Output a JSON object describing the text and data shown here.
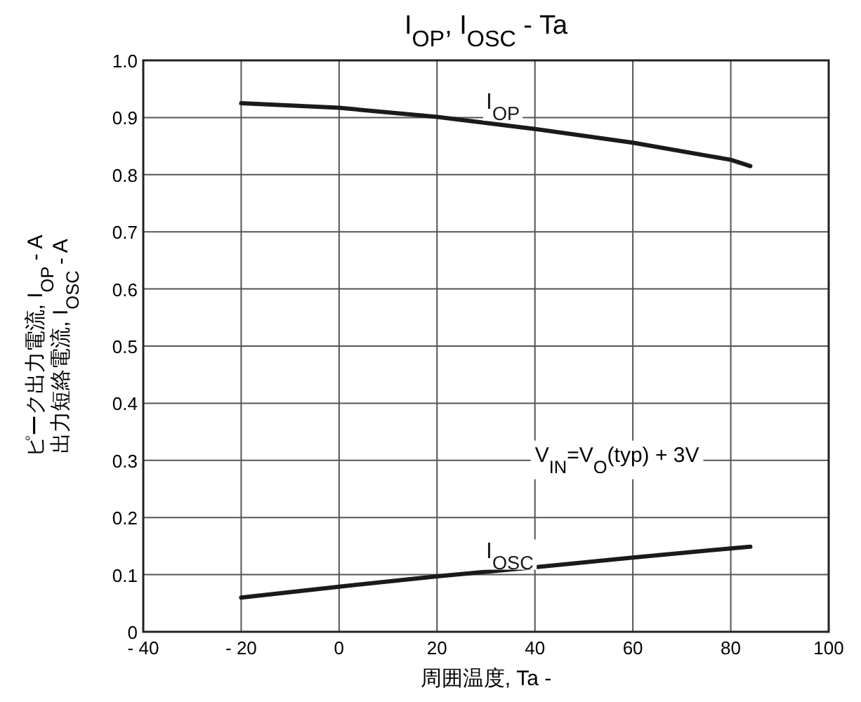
{
  "chart_data": {
    "type": "line",
    "title": "I$_{OP}$, I$_{OSC}$    -    Ta",
    "xlabel": "周囲温度, Ta    -",
    "ylabel": "ピーク出力電流, I$_{OP}$    -    A\n出力短絡電流, I$_{OSC}$    -    A",
    "xlim": [
      -40,
      100
    ],
    "xticks": [
      {
        "value": -40,
        "label": "- 40"
      },
      {
        "value": -20,
        "label": "- 20"
      },
      0,
      20,
      40,
      60,
      80,
      100
    ],
    "ylim": [
      0,
      1.0
    ],
    "yticks": [
      0,
      0.1,
      0.2,
      0.3,
      0.4,
      0.5,
      0.6,
      0.7,
      0.8,
      0.9,
      {
        "value": 1.0,
        "label": "1.0"
      }
    ],
    "grid": true,
    "marker": "none",
    "line_style": "solid",
    "series": [
      {
        "name": "I$_{OP}$",
        "color": "#1a1a1a",
        "x": [
          -20,
          0,
          20,
          40,
          60,
          80,
          84
        ],
        "values": [
          0.925,
          0.917,
          0.901,
          0.88,
          0.856,
          0.826,
          0.815
        ]
      },
      {
        "name": "I$_{OSC}$",
        "color": "#1a1a1a",
        "x": [
          -20,
          0,
          20,
          40,
          60,
          80,
          84
        ],
        "values": [
          0.06,
          0.079,
          0.097,
          0.113,
          0.13,
          0.146,
          0.149
        ]
      }
    ],
    "annotations": [
      "V$_{IN}$=V$_{O}$(typ) + 3V"
    ]
  }
}
